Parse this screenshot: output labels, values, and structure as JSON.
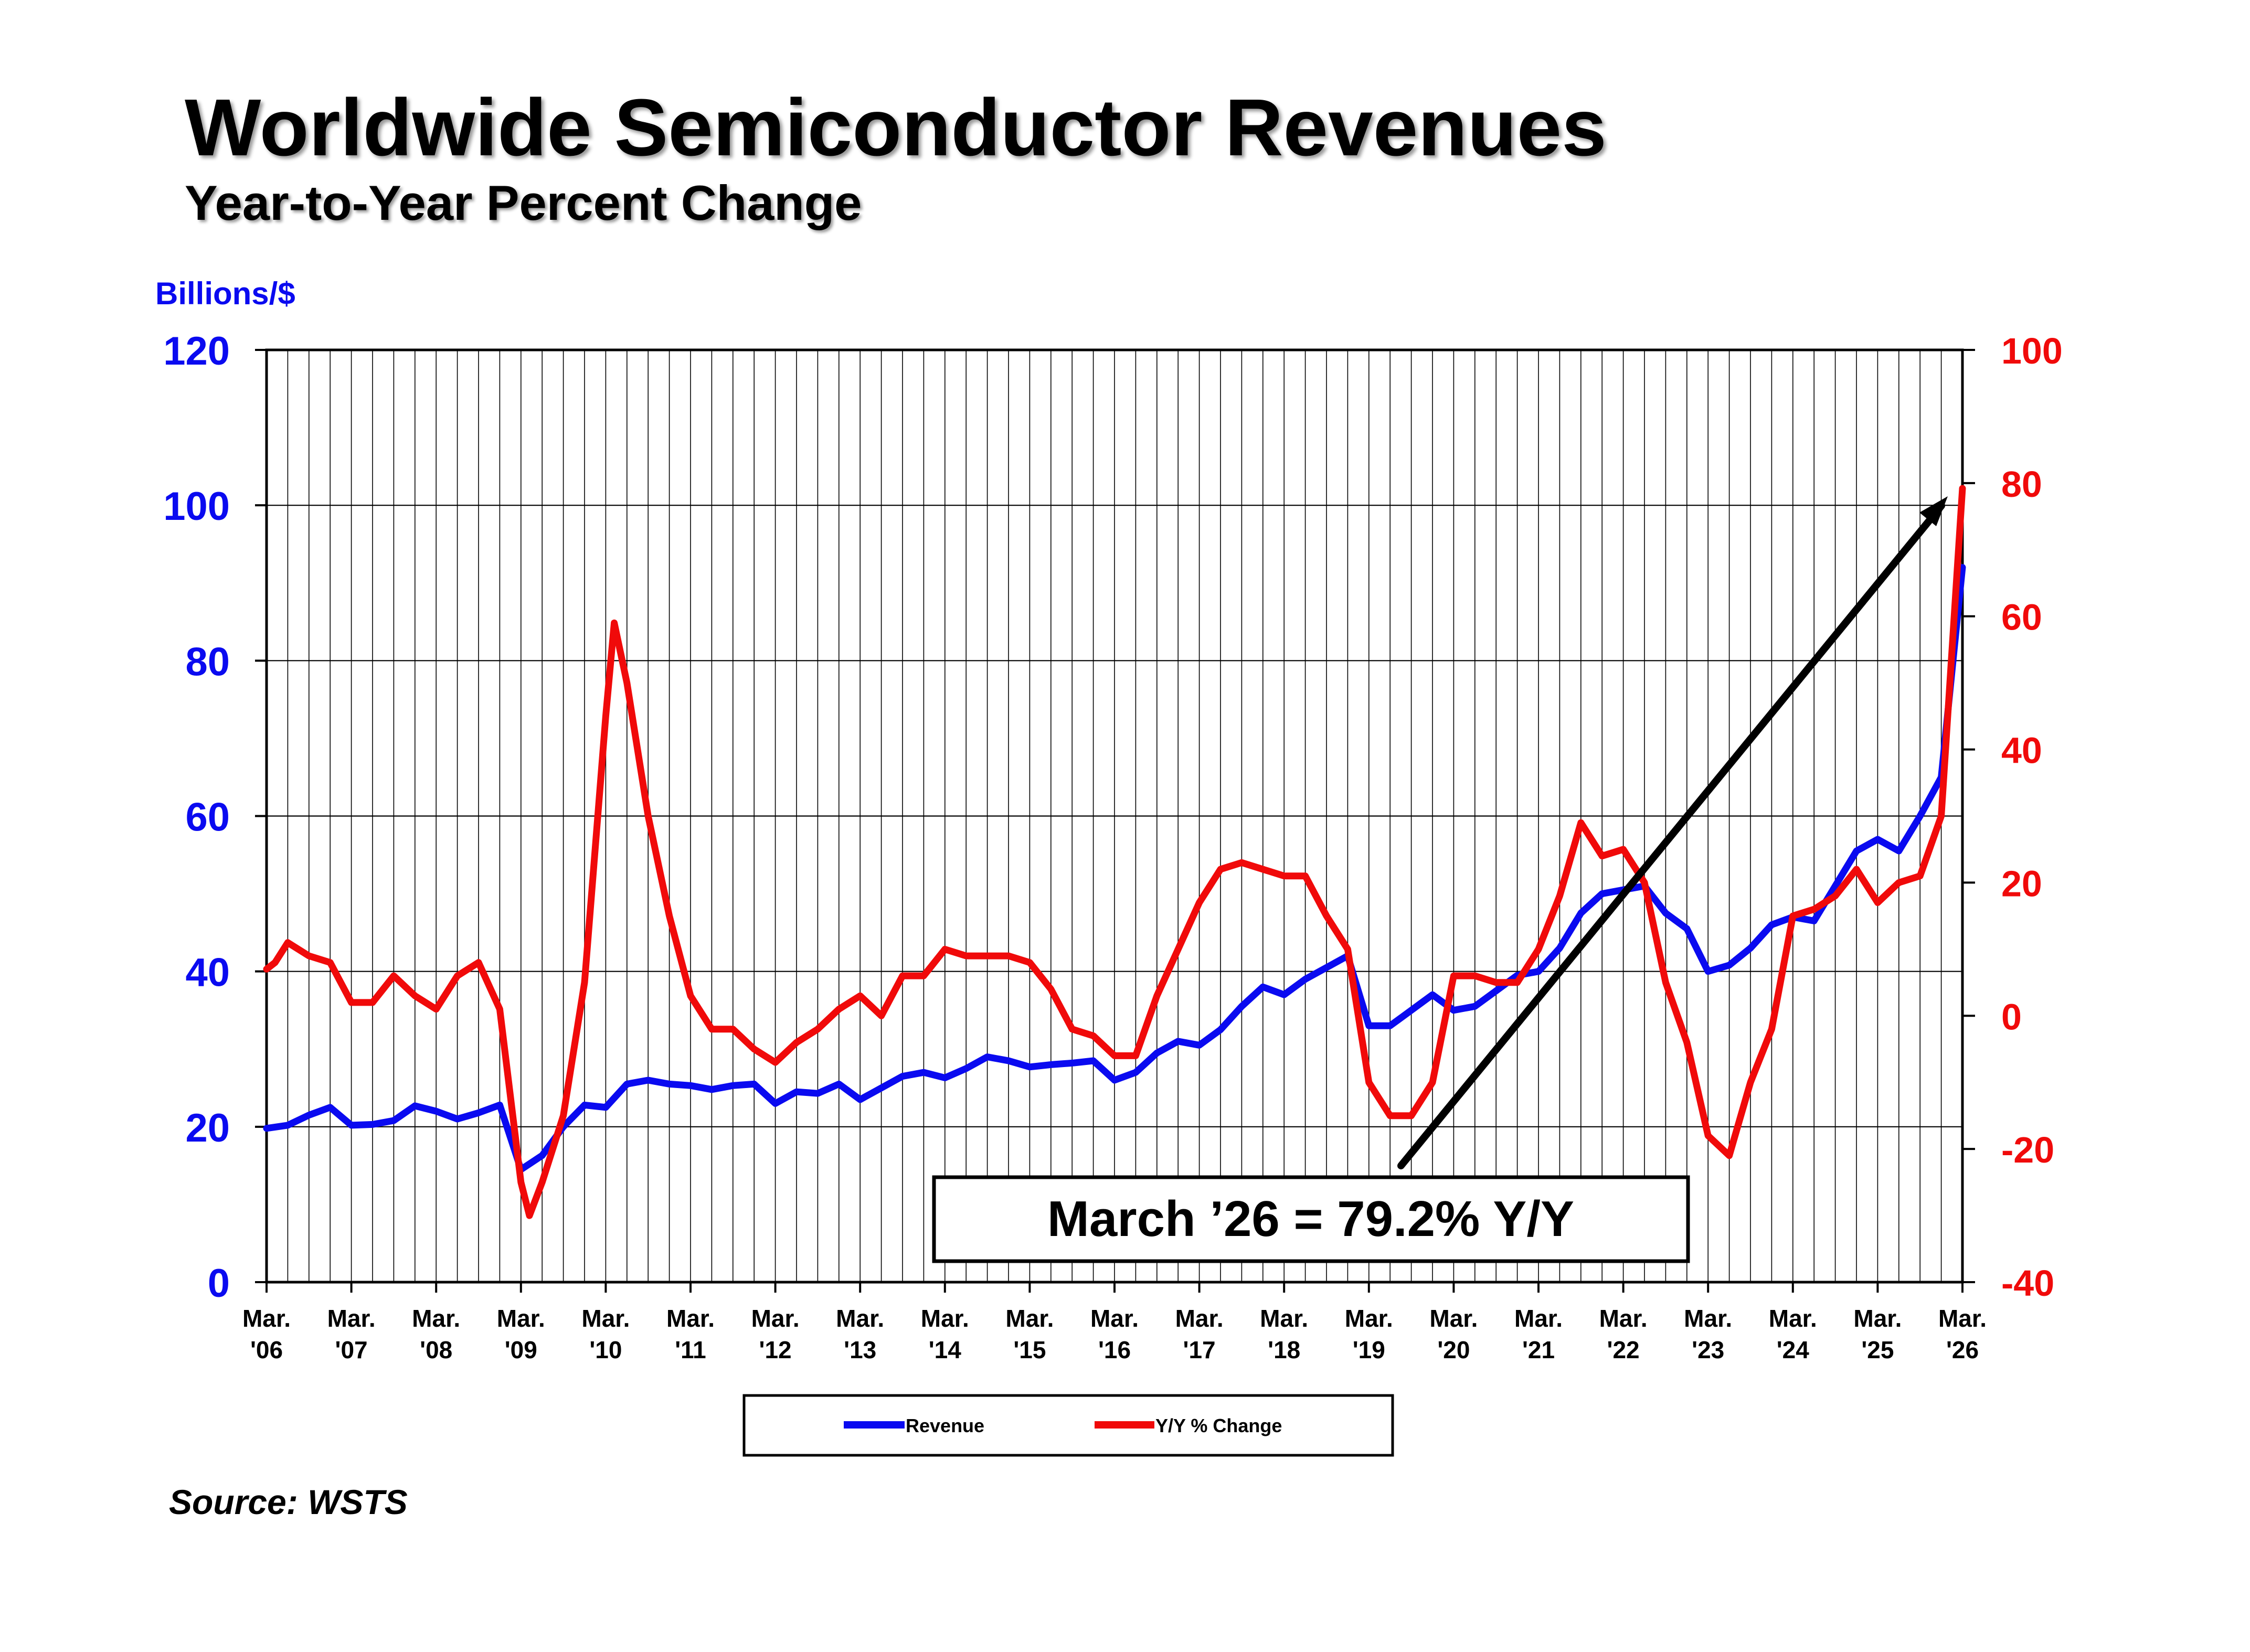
{
  "header": {
    "title": "Worldwide Semiconductor Revenues",
    "subtitle": "Year-to-Year Percent Change"
  },
  "footer": {
    "source": "Source: WSTS"
  },
  "colors": {
    "revenue": "#0a0af0",
    "yoy": "#f00a0a",
    "axis": "#000000",
    "grid": "#000000"
  },
  "chart_data": {
    "type": "line",
    "title": "Worldwide Semiconductor Revenues",
    "subtitle": "Year-to-Year Percent Change",
    "y_left_label": "Billions/$",
    "y_left_range": [
      0,
      120
    ],
    "y_left_ticks": [
      "0",
      "20",
      "40",
      "60",
      "80",
      "100",
      "120"
    ],
    "y_right_range": [
      -40,
      100
    ],
    "y_right_ticks": [
      "-40",
      "-20",
      "0",
      "20",
      "40",
      "60",
      "80",
      "100"
    ],
    "x_range": [
      2006,
      2026
    ],
    "x_tick_labels": [
      [
        "Mar.",
        "'06"
      ],
      [
        "Mar.",
        "'07"
      ],
      [
        "Mar.",
        "'08"
      ],
      [
        "Mar.",
        "'09"
      ],
      [
        "Mar.",
        "'10"
      ],
      [
        "Mar.",
        "'11"
      ],
      [
        "Mar.",
        "'12"
      ],
      [
        "Mar.",
        "'13"
      ],
      [
        "Mar.",
        "'14"
      ],
      [
        "Mar.",
        "'15"
      ],
      [
        "Mar.",
        "'16"
      ],
      [
        "Mar.",
        "'17"
      ],
      [
        "Mar.",
        "'18"
      ],
      [
        "Mar.",
        "'19"
      ],
      [
        "Mar.",
        "'20"
      ],
      [
        "Mar.",
        "'21"
      ],
      [
        "Mar.",
        "'22"
      ],
      [
        "Mar.",
        "'23"
      ],
      [
        "Mar.",
        "'24"
      ],
      [
        "Mar.",
        "'25"
      ],
      [
        "Mar.",
        "'26"
      ]
    ],
    "grid": "vertical per quarter, horizontal at left-axis ticks",
    "legend_position": "bottom-center",
    "annotation": "March ’26 = 79.2% Y/Y",
    "series": [
      {
        "name": "Revenue",
        "axis": "left",
        "color": "#0a0af0",
        "points": [
          [
            2006.0,
            19.8
          ],
          [
            2006.25,
            20.2
          ],
          [
            2006.5,
            21.5
          ],
          [
            2006.75,
            22.5
          ],
          [
            2007.0,
            20.2
          ],
          [
            2007.25,
            20.3
          ],
          [
            2007.5,
            20.8
          ],
          [
            2007.75,
            22.7
          ],
          [
            2008.0,
            22.0
          ],
          [
            2008.25,
            21.0
          ],
          [
            2008.5,
            21.8
          ],
          [
            2008.75,
            22.8
          ],
          [
            2009.0,
            14.5
          ],
          [
            2009.25,
            16.3
          ],
          [
            2009.5,
            20.0
          ],
          [
            2009.75,
            22.8
          ],
          [
            2010.0,
            22.5
          ],
          [
            2010.25,
            25.5
          ],
          [
            2010.5,
            26.0
          ],
          [
            2010.75,
            25.5
          ],
          [
            2011.0,
            25.3
          ],
          [
            2011.25,
            24.8
          ],
          [
            2011.5,
            25.3
          ],
          [
            2011.75,
            25.5
          ],
          [
            2012.0,
            23.0
          ],
          [
            2012.25,
            24.5
          ],
          [
            2012.5,
            24.3
          ],
          [
            2012.75,
            25.5
          ],
          [
            2013.0,
            23.5
          ],
          [
            2013.25,
            25.0
          ],
          [
            2013.5,
            26.5
          ],
          [
            2013.75,
            27.0
          ],
          [
            2014.0,
            26.3
          ],
          [
            2014.25,
            27.5
          ],
          [
            2014.5,
            29.0
          ],
          [
            2014.75,
            28.5
          ],
          [
            2015.0,
            27.7
          ],
          [
            2015.25,
            28.0
          ],
          [
            2015.5,
            28.2
          ],
          [
            2015.75,
            28.5
          ],
          [
            2016.0,
            26.0
          ],
          [
            2016.25,
            27.0
          ],
          [
            2016.5,
            29.5
          ],
          [
            2016.75,
            31.0
          ],
          [
            2017.0,
            30.5
          ],
          [
            2017.25,
            32.5
          ],
          [
            2017.5,
            35.5
          ],
          [
            2017.75,
            38.0
          ],
          [
            2018.0,
            37.0
          ],
          [
            2018.25,
            39.0
          ],
          [
            2018.5,
            40.5
          ],
          [
            2018.75,
            42.0
          ],
          [
            2019.0,
            33.0
          ],
          [
            2019.25,
            33.0
          ],
          [
            2019.5,
            35.0
          ],
          [
            2019.75,
            37.0
          ],
          [
            2020.0,
            35.0
          ],
          [
            2020.25,
            35.5
          ],
          [
            2020.5,
            37.5
          ],
          [
            2020.75,
            39.5
          ],
          [
            2021.0,
            40.0
          ],
          [
            2021.25,
            43.0
          ],
          [
            2021.5,
            47.5
          ],
          [
            2021.75,
            50.0
          ],
          [
            2022.0,
            50.5
          ],
          [
            2022.25,
            51.0
          ],
          [
            2022.5,
            47.5
          ],
          [
            2022.75,
            45.5
          ],
          [
            2023.0,
            40.0
          ],
          [
            2023.25,
            40.8
          ],
          [
            2023.5,
            43.0
          ],
          [
            2023.75,
            46.0
          ],
          [
            2024.0,
            47.0
          ],
          [
            2024.25,
            46.5
          ],
          [
            2024.5,
            51.0
          ],
          [
            2024.75,
            55.5
          ],
          [
            2025.0,
            57.0
          ],
          [
            2025.25,
            55.5
          ],
          [
            2025.5,
            60.0
          ],
          [
            2025.75,
            65.0
          ],
          [
            2026.0,
            92.0
          ]
        ]
      },
      {
        "name": "Y/Y % Change",
        "axis": "right",
        "color": "#f00a0a",
        "points": [
          [
            2006.0,
            7
          ],
          [
            2006.1,
            8
          ],
          [
            2006.25,
            11
          ],
          [
            2006.5,
            9
          ],
          [
            2006.75,
            8
          ],
          [
            2007.0,
            2
          ],
          [
            2007.25,
            2
          ],
          [
            2007.5,
            6
          ],
          [
            2007.75,
            3
          ],
          [
            2008.0,
            1
          ],
          [
            2008.25,
            6
          ],
          [
            2008.5,
            8
          ],
          [
            2008.75,
            1
          ],
          [
            2009.0,
            -25
          ],
          [
            2009.1,
            -30
          ],
          [
            2009.25,
            -25
          ],
          [
            2009.5,
            -15
          ],
          [
            2009.75,
            5
          ],
          [
            2010.0,
            45
          ],
          [
            2010.1,
            59
          ],
          [
            2010.25,
            50
          ],
          [
            2010.5,
            30
          ],
          [
            2010.75,
            15
          ],
          [
            2011.0,
            3
          ],
          [
            2011.25,
            -2
          ],
          [
            2011.5,
            -2
          ],
          [
            2011.75,
            -5
          ],
          [
            2012.0,
            -7
          ],
          [
            2012.25,
            -4
          ],
          [
            2012.5,
            -2
          ],
          [
            2012.75,
            1
          ],
          [
            2013.0,
            3
          ],
          [
            2013.25,
            0
          ],
          [
            2013.5,
            6
          ],
          [
            2013.75,
            6
          ],
          [
            2014.0,
            10
          ],
          [
            2014.25,
            9
          ],
          [
            2014.5,
            9
          ],
          [
            2014.75,
            9
          ],
          [
            2015.0,
            8
          ],
          [
            2015.25,
            4
          ],
          [
            2015.5,
            -2
          ],
          [
            2015.75,
            -3
          ],
          [
            2016.0,
            -6
          ],
          [
            2016.25,
            -6
          ],
          [
            2016.5,
            3
          ],
          [
            2016.75,
            10
          ],
          [
            2017.0,
            17
          ],
          [
            2017.25,
            22
          ],
          [
            2017.5,
            23
          ],
          [
            2017.75,
            22
          ],
          [
            2018.0,
            21
          ],
          [
            2018.25,
            21
          ],
          [
            2018.5,
            15
          ],
          [
            2018.75,
            10
          ],
          [
            2019.0,
            -10
          ],
          [
            2019.25,
            -15
          ],
          [
            2019.5,
            -15
          ],
          [
            2019.75,
            -10
          ],
          [
            2020.0,
            6
          ],
          [
            2020.25,
            6
          ],
          [
            2020.5,
            5
          ],
          [
            2020.75,
            5
          ],
          [
            2021.0,
            10
          ],
          [
            2021.25,
            18
          ],
          [
            2021.5,
            29
          ],
          [
            2021.75,
            24
          ],
          [
            2022.0,
            25
          ],
          [
            2022.25,
            20
          ],
          [
            2022.5,
            5
          ],
          [
            2022.75,
            -4
          ],
          [
            2023.0,
            -18
          ],
          [
            2023.25,
            -21
          ],
          [
            2023.5,
            -10
          ],
          [
            2023.75,
            -2
          ],
          [
            2024.0,
            15
          ],
          [
            2024.25,
            16
          ],
          [
            2024.5,
            18
          ],
          [
            2024.75,
            22
          ],
          [
            2025.0,
            17
          ],
          [
            2025.25,
            20
          ],
          [
            2025.5,
            21
          ],
          [
            2025.75,
            30
          ],
          [
            2026.0,
            79.2
          ]
        ]
      }
    ]
  },
  "legend": {
    "revenue_label": "Revenue",
    "yoy_label": "Y/Y % Change"
  }
}
